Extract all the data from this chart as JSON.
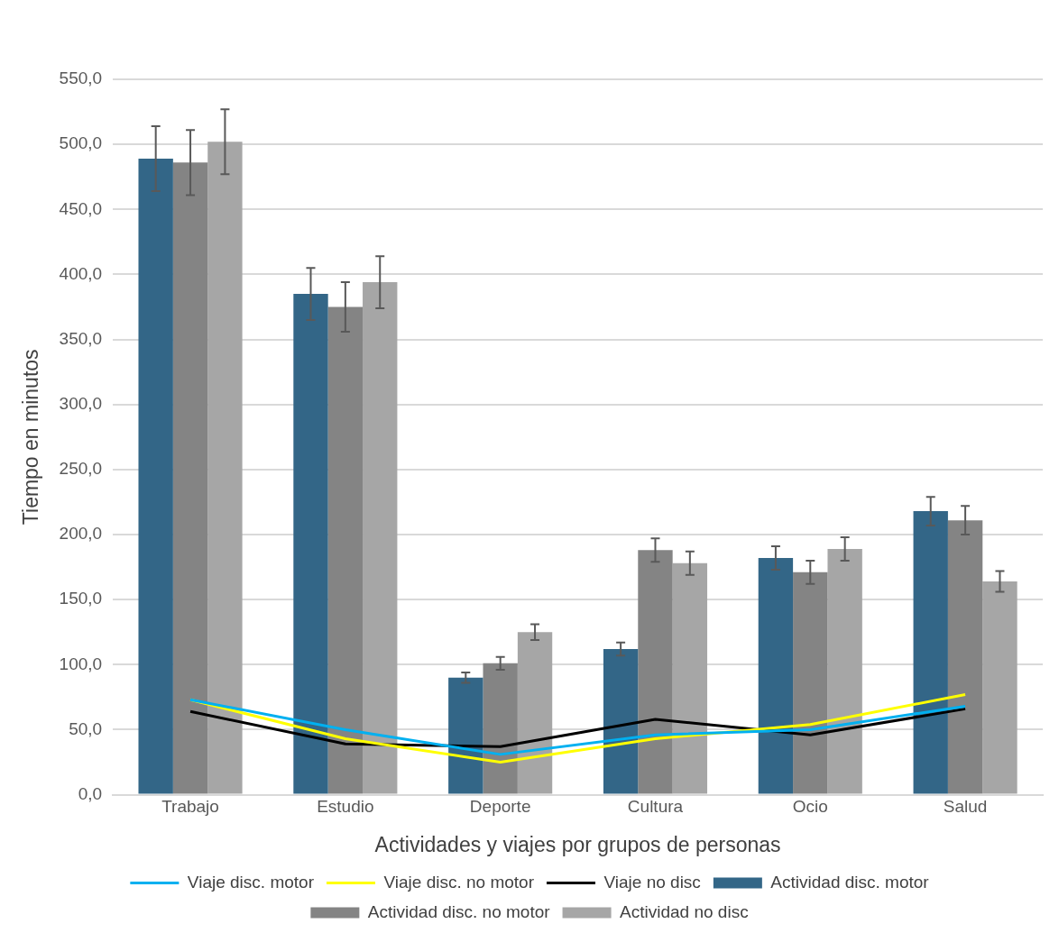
{
  "chart_data": {
    "type": "bar",
    "xlabel": "Actividades y viajes por grupos de personas",
    "ylabel": "Tiempo en minutos",
    "categories": [
      "Trabajo",
      "Estudio",
      "Deporte",
      "Cultura",
      "Ocio",
      "Salud"
    ],
    "series": [
      {
        "name": "Actividad disc. motor",
        "color": "#336687",
        "values": [
          489,
          385,
          90,
          112,
          182,
          218
        ],
        "errors": [
          25,
          20,
          4,
          5,
          9,
          11
        ]
      },
      {
        "name": "Actividad disc. no motor",
        "color": "#848484",
        "values": [
          486,
          375,
          101,
          188,
          171,
          211
        ],
        "errors": [
          25,
          19,
          5,
          9,
          9,
          11
        ]
      },
      {
        "name": "Actividad no disc",
        "color": "#a6a6a6",
        "values": [
          502,
          394,
          125,
          178,
          189,
          164
        ],
        "errors": [
          25,
          20,
          6,
          9,
          9,
          8
        ]
      },
      {
        "name": "Viaje disc. motor",
        "type": "line",
        "color": "#00b0f0",
        "values": [
          73,
          50,
          31,
          46,
          50,
          68
        ]
      },
      {
        "name": "Viaje disc. no motor",
        "type": "line",
        "color": "#ffff00",
        "values": [
          73,
          43,
          25,
          43,
          54,
          77
        ]
      },
      {
        "name": "Viaje no disc",
        "type": "line",
        "color": "#000000",
        "values": [
          64,
          39,
          37,
          58,
          46,
          66
        ]
      }
    ],
    "ylim": [
      0,
      550
    ],
    "yticks": [
      {
        "value": 0,
        "label": "0,0"
      },
      {
        "value": 50,
        "label": "50,0"
      },
      {
        "value": 100,
        "label": "100,0"
      },
      {
        "value": 150,
        "label": "150,0"
      },
      {
        "value": 200,
        "label": "200,0"
      },
      {
        "value": 250,
        "label": "250,0"
      },
      {
        "value": 300,
        "label": "300,0"
      },
      {
        "value": 350,
        "label": "350,0"
      },
      {
        "value": 400,
        "label": "400,0"
      },
      {
        "value": 450,
        "label": "450,0"
      },
      {
        "value": 500,
        "label": "500,0"
      },
      {
        "value": 550,
        "label": "550,0"
      }
    ],
    "grid": "y",
    "legend": "bottom",
    "marker": "none",
    "line_style": "solid"
  }
}
